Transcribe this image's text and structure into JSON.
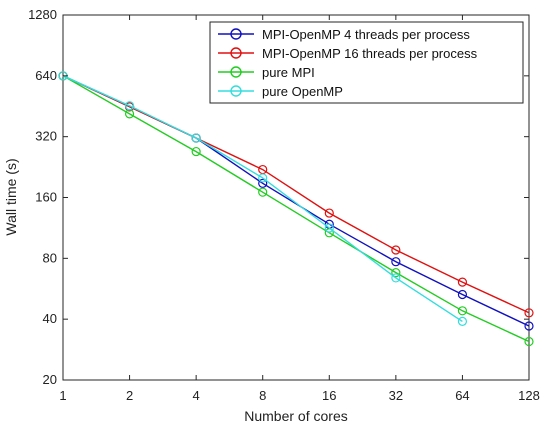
{
  "chart_data": {
    "type": "line",
    "title": "",
    "xlabel": "Number of cores",
    "ylabel": "Wall time (s)",
    "x_scale": "log2",
    "y_scale": "log2",
    "xlim": [
      1,
      128
    ],
    "ylim": [
      20,
      1280
    ],
    "x_ticks": [
      1,
      2,
      4,
      8,
      16,
      32,
      64,
      128
    ],
    "x_tick_labels": [
      "1",
      "2",
      "4",
      "8",
      "16",
      "32",
      "64",
      "128"
    ],
    "y_ticks": [
      20,
      40,
      80,
      160,
      320,
      640,
      1280
    ],
    "y_tick_labels": [
      "20",
      "40",
      "80",
      "160",
      "320",
      "640",
      "1280"
    ],
    "grid": false,
    "legend_position": "top-right",
    "series": [
      {
        "name": "MPI-OpenMP 4 threads per process",
        "color": "#1010c0",
        "x": [
          1,
          2,
          4,
          8,
          16,
          32,
          64,
          128
        ],
        "y": [
          640,
          450,
          315,
          188,
          118,
          77,
          53,
          37
        ]
      },
      {
        "name": "MPI-OpenMP 16 threads per process",
        "color": "#e01010",
        "x": [
          1,
          2,
          4,
          8,
          16,
          32,
          64,
          128
        ],
        "y": [
          640,
          450,
          315,
          220,
          134,
          88,
          61,
          43
        ]
      },
      {
        "name": "pure MPI",
        "color": "#22cc22",
        "x": [
          1,
          2,
          4,
          8,
          16,
          32,
          64,
          128
        ],
        "y": [
          640,
          415,
          270,
          170,
          107,
          68,
          44,
          31
        ]
      },
      {
        "name": "pure OpenMP",
        "color": "#33dddd",
        "x": [
          1,
          2,
          4,
          8,
          16,
          32,
          64
        ],
        "y": [
          640,
          455,
          315,
          200,
          113,
          64,
          39
        ]
      }
    ]
  }
}
